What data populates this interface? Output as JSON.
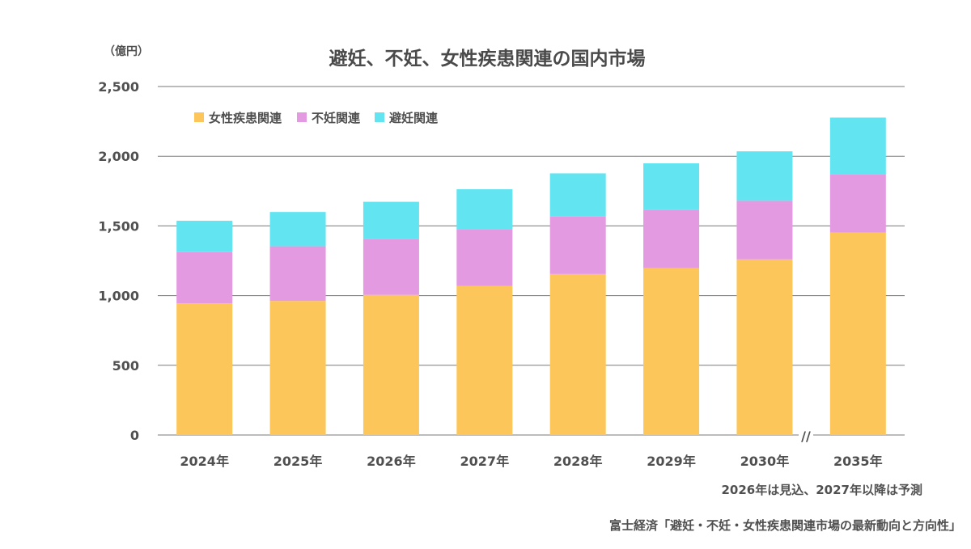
{
  "chart_data": {
    "type": "bar",
    "stacked": true,
    "title": "避妊、不妊、女性疾患関連の国内市場",
    "ylabel": "（億円）",
    "xlabel": "",
    "ylim": [
      0,
      2500
    ],
    "yticks": [
      "0",
      "500",
      "1,000",
      "1,500",
      "2,000",
      "2,500"
    ],
    "ytick_values": [
      0,
      500,
      1000,
      1500,
      2000,
      2500
    ],
    "grid": true,
    "legend_position": "top-left",
    "categories": [
      "2024年",
      "2025年",
      "2026年",
      "2027年",
      "2028年",
      "2029年",
      "2030年",
      "2035年"
    ],
    "axis_break_between": [
      "2030年",
      "2035年"
    ],
    "axis_break_symbol": "//",
    "series": [
      {
        "name": "女性疾患関連",
        "color": "#FDC65B",
        "values": [
          945,
          962,
          1005,
          1070,
          1155,
          1197,
          1260,
          1452
        ]
      },
      {
        "name": "不妊関連",
        "color": "#E49AE0",
        "values": [
          367,
          392,
          403,
          408,
          412,
          416,
          420,
          420
        ]
      },
      {
        "name": "避妊関連",
        "color": "#63E4F1",
        "values": [
          225,
          246,
          265,
          285,
          310,
          336,
          355,
          405
        ]
      }
    ],
    "annotations": [
      "2026年は見込、2027年以降は予測",
      "富士経済「避妊・不妊・女性疾患関連市場の最新動向と方向性」"
    ]
  }
}
